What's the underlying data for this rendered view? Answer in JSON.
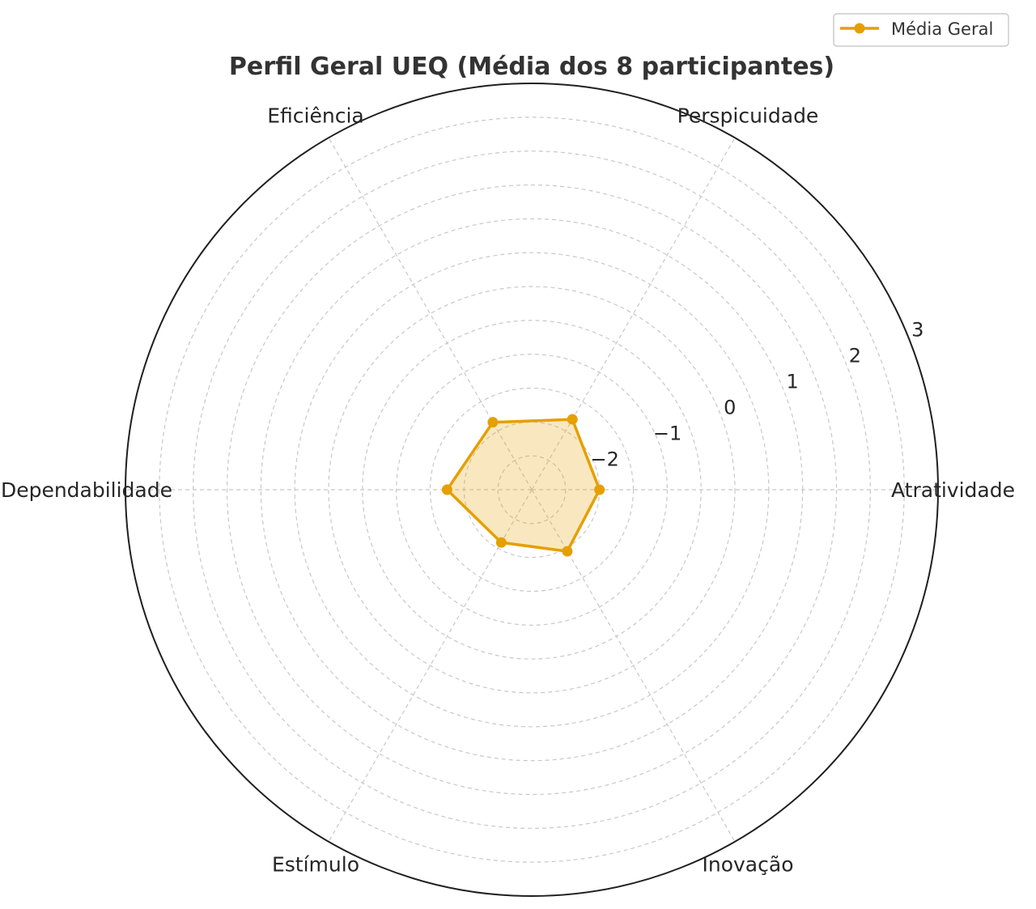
{
  "chart_data": {
    "type": "radar",
    "title": "Perfil Geral UEQ (Média dos 8 participantes)",
    "categories": [
      "Atratividade",
      "Perspicuidade",
      "Eficiência",
      "Dependabilidade",
      "Estímulo",
      "Inovação"
    ],
    "series": [
      {
        "name": "Média Geral",
        "values": [
          -2.0,
          -1.8,
          -1.85,
          -1.75,
          -2.1,
          -1.95
        ],
        "color": "#E69F00"
      }
    ],
    "rlim": [
      -3,
      3
    ],
    "rticks": [
      -2,
      -1,
      0,
      1,
      2,
      3
    ],
    "rtick_labels": [
      "−2",
      "−1",
      "0",
      "1",
      "2",
      "3"
    ],
    "grid": true,
    "legend_position": "top-right"
  }
}
